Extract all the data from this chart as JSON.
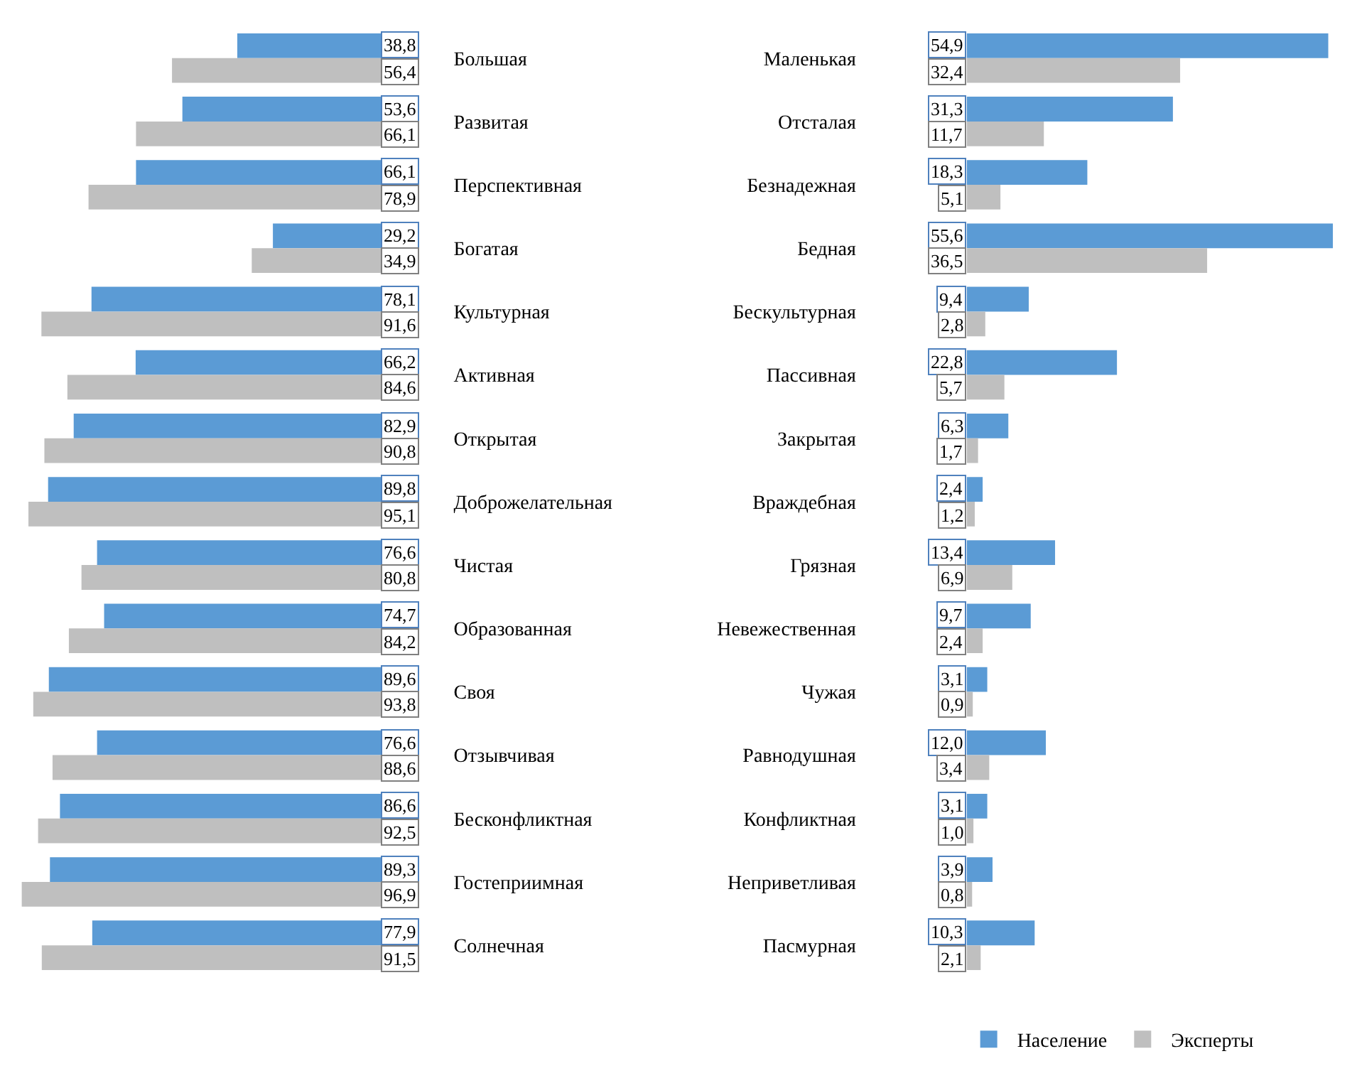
{
  "chart_data": [
    {
      "type": "bar",
      "orientation": "horizontal",
      "categories": [
        "Большая",
        "Развитая",
        "Перспективная",
        "Богатая",
        "Культурная",
        "Активная",
        "Открытая",
        "Доброжелательная",
        "Чистая",
        "Образованная",
        "Своя",
        "Отзывчивая",
        "Бесконфликтная",
        "Гостеприимная",
        "Солнечная"
      ],
      "tick_labels": "y",
      "legend": "bottom",
      "series": [
        {
          "name": "Население",
          "color": "#5b9bd5",
          "values": [
            38.8,
            53.6,
            66.1,
            29.2,
            78.1,
            66.2,
            82.9,
            89.8,
            76.6,
            74.7,
            89.6,
            76.6,
            86.6,
            89.3,
            77.9
          ],
          "value_labels": [
            "38,8",
            "53,6",
            "66,1",
            "29,2",
            "78,1",
            "66,2",
            "82,9",
            "89,8",
            "76,6",
            "74,7",
            "89,6",
            "76,6",
            "86,6",
            "89,3",
            "77,9"
          ]
        },
        {
          "name": "Эксперты",
          "color": "#bfbfbf",
          "values": [
            56.4,
            66.1,
            78.9,
            34.9,
            91.6,
            84.6,
            90.8,
            95.1,
            80.8,
            84.2,
            93.8,
            88.6,
            92.5,
            96.9,
            91.5
          ],
          "value_labels": [
            "56,4",
            "66,1",
            "78,9",
            "34,9",
            "91,6",
            "84,6",
            "90,8",
            "95,1",
            "80,8",
            "84,2",
            "93,8",
            "88,6",
            "92,5",
            "96,9",
            "91,5"
          ]
        }
      ]
    },
    {
      "type": "bar",
      "orientation": "horizontal",
      "categories": [
        "Маленькая",
        "Отсталая",
        "Безнадежная",
        "Бедная",
        "Бескультурная",
        "Пассивная",
        "Закрытая",
        "Враждебная",
        "Грязная",
        "Невежественная",
        "Чужая",
        "Равнодушная",
        "Конфликтная",
        "Неприветливая",
        "Пасмурная"
      ],
      "tick_labels": "y",
      "legend": "bottom",
      "series": [
        {
          "name": "Население",
          "color": "#5b9bd5",
          "values": [
            54.9,
            31.3,
            18.3,
            55.6,
            9.4,
            22.8,
            6.3,
            2.4,
            13.4,
            9.7,
            3.1,
            12.0,
            3.1,
            3.9,
            10.3
          ],
          "value_labels": [
            "54,9",
            "31,3",
            "18,3",
            "55,6",
            "9,4",
            "22,8",
            "6,3",
            "2,4",
            "13,4",
            "9,7",
            "3,1",
            "12,0",
            "3,1",
            "3,9",
            "10,3"
          ]
        },
        {
          "name": "Эксперты",
          "color": "#bfbfbf",
          "values": [
            32.4,
            11.7,
            5.1,
            36.5,
            2.8,
            5.7,
            1.7,
            1.2,
            6.9,
            2.4,
            0.9,
            3.4,
            1.0,
            0.8,
            2.1
          ],
          "value_labels": [
            "32,4",
            "11,7",
            "5,1",
            "36,5",
            "2,8",
            "5,7",
            "1,7",
            "1,2",
            "6,9",
            "2,4",
            "0,9",
            "3,4",
            "1,0",
            "0,8",
            "2,1"
          ]
        }
      ]
    }
  ]
}
